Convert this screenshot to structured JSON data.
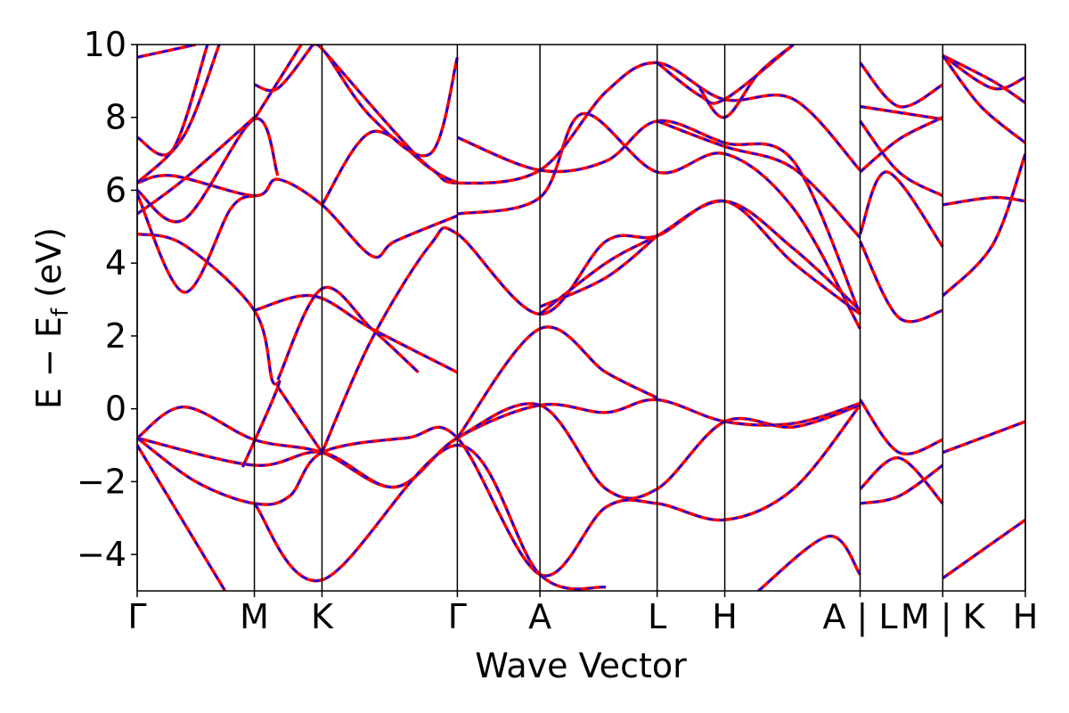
{
  "chart_data": {
    "type": "line",
    "title": "",
    "xlabel": "Wave Vector",
    "ylabel_main": "E − E",
    "ylabel_sub": "f",
    "ylabel_unit": " (eV)",
    "ylim": [
      -5,
      10
    ],
    "y_ticks": [
      -4,
      -2,
      0,
      2,
      4,
      6,
      8,
      10
    ],
    "y_tick_labels": [
      "−4",
      "−2",
      "0",
      "2",
      "4",
      "6",
      "8",
      "10"
    ],
    "x_ticks": [
      {
        "label": "Γ",
        "pos": 0
      },
      {
        "label": "M",
        "pos": 1.0
      },
      {
        "label": "K",
        "pos": 1.577
      },
      {
        "label": "Γ",
        "pos": 2.732
      },
      {
        "label": "A",
        "pos": 3.437
      },
      {
        "label": "L",
        "pos": 4.437
      },
      {
        "label": "H",
        "pos": 5.014
      },
      {
        "label": "A | L",
        "pos": 6.169
      },
      {
        "label": "M | K",
        "pos": 6.874
      },
      {
        "label": "H",
        "pos": 7.579
      }
    ],
    "segment_breaks": [
      6.169,
      6.874
    ],
    "series": [
      {
        "color": "#0000ff",
        "style": "dashed"
      },
      {
        "color": "#ff0000",
        "style": "solid"
      }
    ],
    "bands": [
      [
        [
          0,
          -0.8
        ],
        [
          0.4,
          0.05
        ],
        [
          1.0,
          -0.85
        ],
        [
          1.577,
          -1.2
        ],
        [
          2.2,
          -2.15
        ],
        [
          2.732,
          -0.8
        ],
        [
          3.437,
          0.1
        ],
        [
          4.0,
          -0.1
        ],
        [
          4.437,
          0.25
        ],
        [
          5.014,
          -0.35
        ],
        [
          5.6,
          -0.4
        ],
        [
          6.169,
          0.15
        ],
        [
          6.169,
          0.25
        ],
        [
          6.5,
          -1.2
        ],
        [
          6.874,
          -0.85
        ],
        [
          6.874,
          -1.2
        ],
        [
          7.579,
          -0.35
        ]
      ],
      [
        [
          0,
          -0.8
        ],
        [
          1.0,
          -1.55
        ],
        [
          1.577,
          -1.2
        ],
        [
          2.2,
          -2.15
        ],
        [
          2.732,
          -0.8
        ],
        [
          3.437,
          0.1
        ],
        [
          4.0,
          -2.2
        ],
        [
          4.437,
          -2.2
        ],
        [
          5.014,
          -0.35
        ],
        [
          5.6,
          -0.5
        ],
        [
          6.169,
          0.1
        ],
        [
          6.169,
          -2.2
        ],
        [
          6.5,
          -1.35
        ],
        [
          6.874,
          -2.6
        ]
      ],
      [
        [
          0,
          -0.8
        ],
        [
          0.5,
          -2.0
        ],
        [
          1.0,
          -2.6
        ],
        [
          1.3,
          -2.4
        ],
        [
          1.577,
          -1.2
        ],
        [
          2.3,
          -0.8
        ],
        [
          2.732,
          -0.8
        ],
        [
          3.437,
          -4.55
        ],
        [
          4.0,
          -2.7
        ],
        [
          4.437,
          -2.6
        ],
        [
          5.014,
          -3.05
        ],
        [
          5.6,
          -2.2
        ],
        [
          6.169,
          0.1
        ],
        [
          6.169,
          -2.6
        ],
        [
          6.5,
          -2.4
        ],
        [
          6.874,
          -1.55
        ]
      ],
      [
        [
          0,
          -1.0
        ],
        [
          0.75,
          -5.0
        ]
      ],
      [
        [
          1.0,
          -2.6
        ],
        [
          1.577,
          -4.7
        ],
        [
          2.732,
          -1.0
        ],
        [
          3.437,
          -4.55
        ],
        [
          4.0,
          -4.9
        ]
      ],
      [
        [
          5.3,
          -5.0
        ],
        [
          5.9,
          -3.5
        ],
        [
          6.169,
          -4.55
        ]
      ],
      [
        [
          6.874,
          -4.65
        ],
        [
          7.579,
          -3.05
        ]
      ],
      [
        [
          1.2,
          0.6
        ],
        [
          1.577,
          -1.2
        ]
      ],
      [
        [
          0.9,
          -1.6
        ],
        [
          1.2,
          0.6
        ],
        [
          1.15,
          0.8
        ],
        [
          1.0,
          2.7
        ],
        [
          0.4,
          4.5
        ],
        [
          0,
          4.8
        ]
      ],
      [
        [
          1.0,
          2.7
        ],
        [
          1.5,
          3.1
        ],
        [
          2.0,
          2.2
        ],
        [
          2.732,
          1.0
        ]
      ],
      [
        [
          1.2,
          0.8
        ],
        [
          1.577,
          3.3
        ],
        [
          2.0,
          2.2
        ],
        [
          2.4,
          1.0
        ]
      ],
      [
        [
          1.577,
          -1.2
        ],
        [
          2.0,
          1.9
        ],
        [
          2.5,
          4.5
        ],
        [
          2.732,
          4.8
        ],
        [
          3.437,
          2.6
        ],
        [
          4.0,
          4.6
        ],
        [
          4.437,
          4.75
        ],
        [
          5.014,
          5.7
        ],
        [
          5.6,
          4.0
        ],
        [
          6.169,
          2.6
        ]
      ],
      [
        [
          2.732,
          -0.8
        ],
        [
          3.437,
          2.2
        ],
        [
          4.0,
          1.0
        ],
        [
          4.437,
          0.3
        ]
      ],
      [
        [
          3.437,
          2.6
        ],
        [
          4.0,
          4.0
        ],
        [
          4.437,
          4.75
        ],
        [
          5.014,
          5.7
        ],
        [
          5.6,
          4.4
        ],
        [
          6.169,
          2.7
        ]
      ],
      [
        [
          3.437,
          2.8
        ],
        [
          4.0,
          3.6
        ],
        [
          4.437,
          4.75
        ]
      ],
      [
        [
          2.732,
          5.35
        ],
        [
          3.437,
          5.8
        ],
        [
          3.8,
          8.1
        ],
        [
          4.437,
          6.5
        ],
        [
          5.014,
          7.0
        ],
        [
          5.6,
          5.5
        ],
        [
          6.169,
          2.2
        ]
      ],
      [
        [
          2.732,
          5.3
        ],
        [
          2.2,
          4.6
        ],
        [
          2.0,
          4.2
        ],
        [
          1.577,
          5.6
        ],
        [
          1.2,
          6.3
        ],
        [
          1.0,
          5.85
        ],
        [
          0.3,
          6.4
        ],
        [
          0,
          6.2
        ]
      ],
      [
        [
          1.577,
          5.6
        ],
        [
          2.0,
          7.6
        ],
        [
          2.5,
          6.6
        ],
        [
          2.732,
          6.2
        ],
        [
          3.437,
          6.55
        ],
        [
          4.0,
          8.7
        ],
        [
          4.437,
          9.5
        ],
        [
          5.0,
          8.5
        ],
        [
          5.6,
          8.5
        ],
        [
          6.169,
          6.55
        ]
      ],
      [
        [
          2.732,
          7.45
        ],
        [
          3.437,
          6.55
        ],
        [
          4.0,
          6.8
        ],
        [
          4.437,
          7.9
        ],
        [
          5.014,
          7.3
        ],
        [
          5.6,
          6.8
        ],
        [
          6.169,
          2.6
        ]
      ],
      [
        [
          2.732,
          9.65
        ],
        [
          2.5,
          7.0
        ],
        [
          2.0,
          8.0
        ],
        [
          1.6,
          9.8
        ],
        [
          1.5,
          10.0
        ]
      ],
      [
        [
          1.6,
          9.8
        ],
        [
          2.4,
          6.9
        ],
        [
          2.732,
          6.2
        ]
      ],
      [
        [
          1.0,
          7.95
        ],
        [
          1.4,
          10.0
        ]
      ],
      [
        [
          0,
          9.65
        ],
        [
          0.5,
          10.0
        ]
      ],
      [
        [
          0,
          7.45
        ],
        [
          0.3,
          7.1
        ],
        [
          0.6,
          10.0
        ]
      ],
      [
        [
          0,
          6.2
        ],
        [
          0.4,
          7.5
        ],
        [
          0.7,
          10.0
        ]
      ],
      [
        [
          0,
          6.0
        ],
        [
          0.4,
          5.2
        ],
        [
          1.0,
          7.95
        ],
        [
          1.2,
          6.4
        ]
      ],
      [
        [
          0,
          5.9
        ],
        [
          0.4,
          3.2
        ],
        [
          0.8,
          5.5
        ],
        [
          1.0,
          5.85
        ]
      ],
      [
        [
          0,
          5.35
        ],
        [
          0.4,
          6.3
        ],
        [
          1.0,
          8.0
        ]
      ],
      [
        [
          1.0,
          8.9
        ],
        [
          1.2,
          8.8
        ],
        [
          1.5,
          10.0
        ]
      ],
      [
        [
          6.169,
          4.8
        ],
        [
          6.4,
          6.5
        ],
        [
          6.874,
          4.45
        ]
      ],
      [
        [
          6.169,
          9.5
        ],
        [
          6.5,
          8.3
        ],
        [
          6.874,
          8.9
        ]
      ],
      [
        [
          6.169,
          8.3
        ],
        [
          6.874,
          7.95
        ]
      ],
      [
        [
          6.169,
          6.5
        ],
        [
          6.5,
          7.4
        ],
        [
          6.874,
          8.0
        ]
      ],
      [
        [
          6.169,
          7.9
        ],
        [
          6.5,
          6.5
        ],
        [
          6.874,
          5.85
        ]
      ],
      [
        [
          6.169,
          4.6
        ],
        [
          6.5,
          2.5
        ],
        [
          6.874,
          2.7
        ]
      ],
      [
        [
          6.874,
          9.7
        ],
        [
          7.3,
          9.0
        ],
        [
          7.579,
          8.4
        ]
      ],
      [
        [
          6.874,
          9.7
        ],
        [
          7.3,
          8.8
        ],
        [
          7.579,
          9.1
        ]
      ],
      [
        [
          6.874,
          9.7
        ],
        [
          7.2,
          8.3
        ],
        [
          7.579,
          7.3
        ]
      ],
      [
        [
          6.874,
          5.6
        ],
        [
          7.3,
          5.8
        ],
        [
          7.579,
          5.7
        ]
      ],
      [
        [
          6.874,
          3.1
        ],
        [
          7.3,
          4.5
        ],
        [
          7.579,
          7.0
        ]
      ],
      [
        [
          4.437,
          7.9
        ],
        [
          5.014,
          7.2
        ],
        [
          5.6,
          6.6
        ],
        [
          6.169,
          4.7
        ]
      ],
      [
        [
          4.437,
          9.5
        ],
        [
          4.8,
          8.6
        ],
        [
          5.014,
          8.5
        ],
        [
          5.6,
          10.0
        ]
      ],
      [
        [
          4.8,
          8.8
        ],
        [
          5.014,
          8.0
        ],
        [
          5.3,
          9.2
        ],
        [
          5.6,
          10.0
        ]
      ]
    ]
  }
}
